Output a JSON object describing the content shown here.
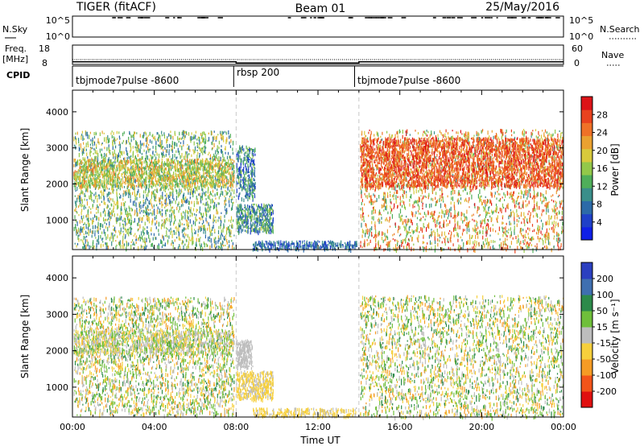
{
  "header": {
    "title": "TIGER (fitACF)",
    "beam": "Beam 01",
    "date": "25/May/2016"
  },
  "chart_data": [
    {
      "name": "noise-panel",
      "type": "line",
      "left_label": "N.Sky",
      "right_label": "N.Search",
      "ytick_labels_left": [
        "10^5",
        "10^0"
      ],
      "ytick_labels_right": [
        "10^5",
        "10^0"
      ]
    },
    {
      "name": "freq-nave-panel",
      "type": "line",
      "left_label_top": "Freq.",
      "left_label_unit": "[MHz]",
      "right_label": "Nave",
      "ytick_labels_left": [
        "18",
        "8"
      ],
      "ytick_labels_right": [
        "60",
        "0"
      ],
      "freq_mhz": [
        {
          "x": 0,
          "y": 11.0
        },
        {
          "x": 8,
          "y": 11.0
        },
        {
          "x": 8,
          "y": 10.4
        },
        {
          "x": 14,
          "y": 10.4
        },
        {
          "x": 14,
          "y": 11.0
        },
        {
          "x": 24,
          "y": 11.0
        }
      ]
    },
    {
      "name": "cpid-panel",
      "type": "table",
      "label": "CPID",
      "segments": [
        {
          "start": 0,
          "end": 8,
          "text": "tbjmode7pulse -8600"
        },
        {
          "start": 8,
          "end": 14,
          "text": "rbsp 200"
        },
        {
          "start": 14,
          "end": 24,
          "text": "tbjmode7pulse -8600"
        }
      ]
    },
    {
      "name": "power-panel",
      "type": "heatmap",
      "ylabel": "Slant Range [km]",
      "ylim": [
        180,
        4600
      ],
      "yticks": [
        1000,
        2000,
        3000,
        4000
      ],
      "xlim": [
        0,
        24
      ],
      "colorbar": {
        "label": "Power [dB]",
        "range": [
          0,
          32
        ],
        "ticks": [
          "4",
          "8",
          "12",
          "16",
          "20",
          "24",
          "28"
        ],
        "tick_values": [
          4,
          8,
          12,
          16,
          20,
          24,
          28
        ],
        "colors": [
          "#0f1fe6",
          "#1f40c8",
          "#2c6aa8",
          "#3a8e8a",
          "#4fae5a",
          "#93c84a",
          "#d8c93c",
          "#eaa130",
          "#ef7127",
          "#e8421e",
          "#dc1418"
        ]
      },
      "regions": [
        {
          "x0": 0.05,
          "x1": 7.9,
          "y0": 250,
          "y1": 3500,
          "v0": 6,
          "v1": 22,
          "density": 0.16
        },
        {
          "x0": 0.05,
          "x1": 7.9,
          "y0": 1950,
          "y1": 2700,
          "v0": 12,
          "v1": 24,
          "density": 0.32
        },
        {
          "x0": 8.0,
          "x1": 8.9,
          "y0": 1600,
          "y1": 3100,
          "v0": 3,
          "v1": 16,
          "density": 0.35
        },
        {
          "x0": 8.0,
          "x1": 9.8,
          "y0": 700,
          "y1": 1450,
          "v0": 4,
          "v1": 18,
          "density": 0.45
        },
        {
          "x0": 8.8,
          "x1": 13.9,
          "y0": 220,
          "y1": 430,
          "v0": 3,
          "v1": 12,
          "density": 0.4
        },
        {
          "x0": 14.05,
          "x1": 23.95,
          "y0": 200,
          "y1": 3550,
          "v0": 10,
          "v1": 30,
          "density": 0.13
        },
        {
          "x0": 14.05,
          "x1": 23.95,
          "y0": 1950,
          "y1": 3300,
          "v0": 22,
          "v1": 31,
          "density": 0.35
        }
      ]
    },
    {
      "name": "velocity-panel",
      "type": "heatmap",
      "ylabel": "Slant Range [km]",
      "ylim": [
        180,
        4600
      ],
      "yticks": [
        1000,
        2000,
        3000,
        4000
      ],
      "xlim": [
        0,
        24
      ],
      "xlabel": "Time UT",
      "xtick_labels": [
        "00:00",
        "04:00",
        "08:00",
        "12:00",
        "16:00",
        "20:00",
        "00:00"
      ],
      "xtick_values": [
        0,
        4,
        8,
        12,
        16,
        20,
        24
      ],
      "colorbar": {
        "label": "Velocity [m s⁻¹]",
        "range": [
          -250,
          250
        ],
        "ticks": [
          "-200",
          "-100",
          "-50",
          "-15",
          "15",
          "50",
          "100",
          "200"
        ],
        "tick_values": [
          -200,
          -100,
          -50,
          -15,
          15,
          50,
          100,
          200
        ],
        "colors": [
          "#e01010",
          "#f2541a",
          "#f59b25",
          "#f6cf3c",
          "#bdbdbd",
          "#6fbf3a",
          "#2c8a4a",
          "#3f6fb0",
          "#2b3fc0"
        ]
      },
      "regions": [
        {
          "x0": 0.05,
          "x1": 7.9,
          "y0": 250,
          "y1": 3500,
          "v0": -120,
          "v1": 120,
          "density": 0.18
        },
        {
          "x0": 0.05,
          "x1": 7.9,
          "y0": 1950,
          "y1": 2600,
          "v0": -60,
          "v1": 60,
          "density": 0.3
        },
        {
          "x0": 8.0,
          "x1": 8.8,
          "y0": 1550,
          "y1": 2300,
          "v0": -14,
          "v1": 14,
          "density": 0.55
        },
        {
          "x0": 8.0,
          "x1": 9.8,
          "y0": 700,
          "y1": 1450,
          "v0": -80,
          "v1": -5,
          "density": 0.45
        },
        {
          "x0": 8.8,
          "x1": 13.9,
          "y0": 220,
          "y1": 430,
          "v0": -60,
          "v1": -15,
          "density": 0.35
        },
        {
          "x0": 14.05,
          "x1": 23.95,
          "y0": 200,
          "y1": 3550,
          "v0": -120,
          "v1": 120,
          "density": 0.15
        }
      ]
    }
  ]
}
